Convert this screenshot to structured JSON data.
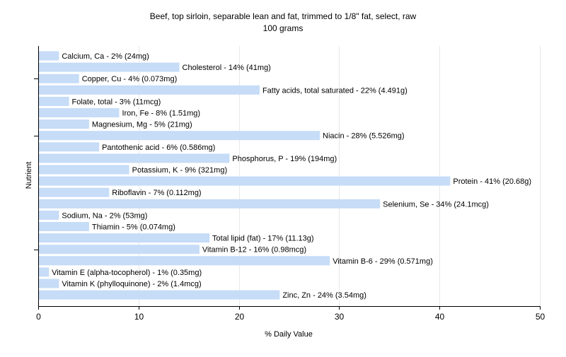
{
  "chart_data": {
    "type": "bar",
    "orientation": "horizontal",
    "title": "Beef, top sirloin, separable lean and fat, trimmed to 1/8\" fat, select, raw",
    "subtitle": "100 grams",
    "xlabel": "% Daily Value",
    "ylabel": "Nutrient",
    "xlim": [
      0,
      50
    ],
    "xticks": [
      0,
      10,
      20,
      30,
      40,
      50
    ],
    "grid": true,
    "bar_color": "#c6dcf7",
    "categories": [
      "Calcium, Ca",
      "Cholesterol",
      "Copper, Cu",
      "Fatty acids, total saturated",
      "Folate, total",
      "Iron, Fe",
      "Magnesium, Mg",
      "Niacin",
      "Pantothenic acid",
      "Phosphorus, P",
      "Potassium, K",
      "Protein",
      "Riboflavin",
      "Selenium, Se",
      "Sodium, Na",
      "Thiamin",
      "Total lipid (fat)",
      "Vitamin B-12",
      "Vitamin B-6",
      "Vitamin E (alpha-tocopherol)",
      "Vitamin K (phylloquinone)",
      "Zinc, Zn"
    ],
    "values": [
      2,
      14,
      4,
      22,
      3,
      8,
      5,
      28,
      6,
      19,
      9,
      41,
      7,
      34,
      2,
      5,
      17,
      16,
      29,
      1,
      2,
      24
    ],
    "labels": [
      "Calcium, Ca - 2% (24mg)",
      "Cholesterol - 14% (41mg)",
      "Copper, Cu - 4% (0.073mg)",
      "Fatty acids, total saturated - 22% (4.491g)",
      "Folate, total - 3% (11mcg)",
      "Iron, Fe - 8% (1.51mg)",
      "Magnesium, Mg - 5% (21mg)",
      "Niacin - 28% (5.526mg)",
      "Pantothenic acid - 6% (0.586mg)",
      "Phosphorus, P - 19% (194mg)",
      "Potassium, K - 9% (321mg)",
      "Protein - 41% (20.68g)",
      "Riboflavin - 7% (0.112mg)",
      "Selenium, Se - 34% (24.1mcg)",
      "Sodium, Na - 2% (53mg)",
      "Thiamin - 5% (0.074mg)",
      "Total lipid (fat) - 17% (11.13g)",
      "Vitamin B-12 - 16% (0.98mcg)",
      "Vitamin B-6 - 29% (0.571mg)",
      "Vitamin E (alpha-tocopherol) - 1% (0.35mg)",
      "Vitamin K (phylloquinone) - 2% (1.4mcg)",
      "Zinc, Zn - 24% (3.54mg)"
    ]
  }
}
